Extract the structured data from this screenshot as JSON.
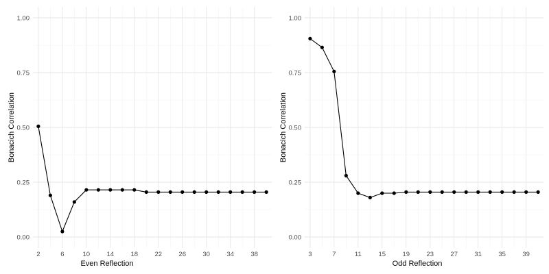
{
  "chart_data": [
    {
      "type": "line",
      "xlabel": "Even Reflection",
      "ylabel": "Bonacich Correlation",
      "xlim": [
        1.1,
        40.9
      ],
      "ylim": [
        -0.05,
        1.05
      ],
      "x_ticks": [
        2,
        6,
        10,
        14,
        18,
        22,
        26,
        30,
        34,
        38
      ],
      "y_ticks": [
        0.0,
        0.25,
        0.5,
        0.75,
        1.0
      ],
      "y_tick_labels": [
        "0.00",
        "0.25",
        "0.50",
        "0.75",
        "1.00"
      ],
      "grid": true,
      "series": [
        {
          "x": [
            2,
            4,
            6,
            8,
            10,
            12,
            14,
            16,
            18,
            20,
            22,
            24,
            26,
            28,
            30,
            32,
            34,
            36,
            38,
            40
          ],
          "values": [
            0.505,
            0.19,
            0.025,
            0.16,
            0.215,
            0.215,
            0.215,
            0.215,
            0.215,
            0.205,
            0.205,
            0.205,
            0.205,
            0.205,
            0.205,
            0.205,
            0.205,
            0.205,
            0.205,
            0.205
          ]
        }
      ]
    },
    {
      "type": "line",
      "xlabel": "Odd Reflection",
      "ylabel": "Bonacich Correlation",
      "xlim": [
        2.1,
        41.9
      ],
      "ylim": [
        -0.05,
        1.05
      ],
      "x_ticks": [
        3,
        7,
        11,
        15,
        19,
        23,
        27,
        31,
        35,
        39
      ],
      "y_ticks": [
        0.0,
        0.25,
        0.5,
        0.75,
        1.0
      ],
      "y_tick_labels": [
        "0.00",
        "0.25",
        "0.50",
        "0.75",
        "1.00"
      ],
      "grid": true,
      "series": [
        {
          "x": [
            3,
            5,
            7,
            9,
            11,
            13,
            15,
            17,
            19,
            21,
            23,
            25,
            27,
            29,
            31,
            33,
            35,
            37,
            39,
            41
          ],
          "values": [
            0.905,
            0.865,
            0.755,
            0.28,
            0.2,
            0.18,
            0.2,
            0.2,
            0.205,
            0.205,
            0.205,
            0.205,
            0.205,
            0.205,
            0.205,
            0.205,
            0.205,
            0.205,
            0.205,
            0.205
          ]
        }
      ]
    }
  ]
}
